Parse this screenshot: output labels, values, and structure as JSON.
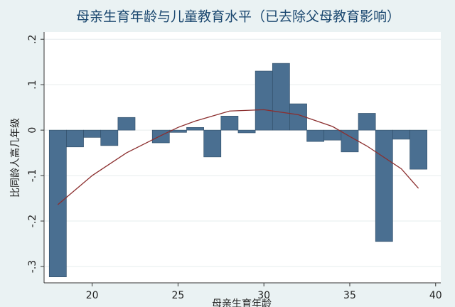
{
  "chart_data": {
    "type": "bar",
    "title": "母亲生育年龄与儿童教育水平（已去除父母教育影响）",
    "xlabel": "母亲生育年龄",
    "ylabel": "比同龄人高几年级",
    "x": [
      18,
      19,
      20,
      21,
      22,
      23,
      24,
      25,
      26,
      27,
      28,
      29,
      30,
      31,
      32,
      33,
      34,
      35,
      36,
      37,
      38,
      39
    ],
    "values": [
      -0.323,
      -0.037,
      -0.016,
      -0.034,
      0.028,
      0,
      -0.028,
      -0.005,
      0.006,
      -0.059,
      0.031,
      -0.006,
      0.13,
      0.147,
      0.058,
      -0.025,
      -0.022,
      -0.048,
      0.037,
      -0.245,
      -0.02,
      -0.086
    ],
    "color": "#4a6f91",
    "line": {
      "x": [
        18,
        20,
        22,
        24,
        25,
        26,
        28,
        30,
        32,
        34,
        35,
        36,
        38,
        39
      ],
      "values": [
        -0.164,
        -0.1,
        -0.05,
        -0.012,
        0.006,
        0.02,
        0.042,
        0.045,
        0.034,
        0.008,
        -0.014,
        -0.035,
        -0.085,
        -0.128
      ],
      "color": "#8b2e2e"
    },
    "xlim": [
      17.2,
      40.3
    ],
    "ylim": [
      -0.336,
      0.216
    ],
    "xticks": [
      20,
      25,
      30,
      35,
      40
    ],
    "yticks": [
      {
        "value": -0.3,
        "label": "-.3"
      },
      {
        "value": -0.2,
        "label": "-.2"
      },
      {
        "value": -0.1,
        "label": "-.1"
      },
      0,
      {
        "value": 0.1,
        "label": ".1"
      },
      {
        "value": 0.2,
        "label": ".2"
      }
    ],
    "grid": true
  }
}
